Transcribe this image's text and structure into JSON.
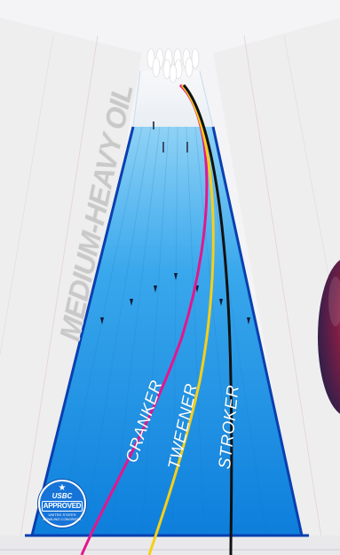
{
  "oil_pattern": "MEDIUM-HEAVY OIL",
  "ball_paths": [
    {
      "label": "CRANKER",
      "color": "#e4168c"
    },
    {
      "label": "TWEENER",
      "color": "#f6cf18"
    },
    {
      "label": "STROKER",
      "color": "#111111"
    }
  ],
  "badge": {
    "icon": "star-icon",
    "org": "USBC",
    "status": "APPROVED",
    "sub": "UNITED STATES BOWLING CONGRESS"
  },
  "colors": {
    "oil_light": "#6fc6f2",
    "oil_dark": "#0d7fdc",
    "lane_edge": "#0a3fb0",
    "lane_surface": "#f2f2f4"
  }
}
